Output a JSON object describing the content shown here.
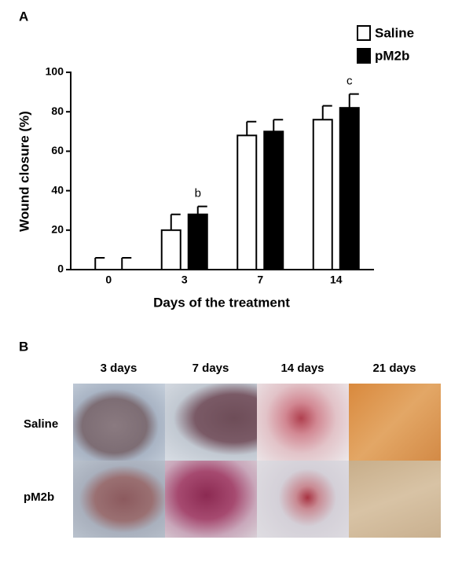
{
  "panels": {
    "a": "A",
    "b": "B"
  },
  "chart_data": {
    "type": "bar",
    "y_label": "Wound closure (%)",
    "x_label": "Days of the treatment",
    "categories": [
      "0",
      "3",
      "7",
      "14"
    ],
    "series": [
      {
        "name": "Saline",
        "color": "#ffffff",
        "values": [
          0,
          20,
          68,
          76
        ],
        "errors": [
          6,
          8,
          7,
          7
        ],
        "annotations": [
          null,
          null,
          null,
          null
        ]
      },
      {
        "name": "pM2b",
        "color": "#000000",
        "values": [
          0,
          28,
          70,
          82
        ],
        "errors": [
          6,
          4,
          6,
          7
        ],
        "annotations": [
          null,
          "b",
          null,
          "c"
        ]
      }
    ],
    "ylim": [
      0,
      100
    ],
    "yticks": [
      0,
      20,
      40,
      60,
      80,
      100
    ],
    "legend": "upper right"
  },
  "photo_grid": {
    "columns": [
      "3 days",
      "7 days",
      "14 days",
      "21 days"
    ],
    "rows": [
      "Saline",
      "pM2b"
    ]
  }
}
